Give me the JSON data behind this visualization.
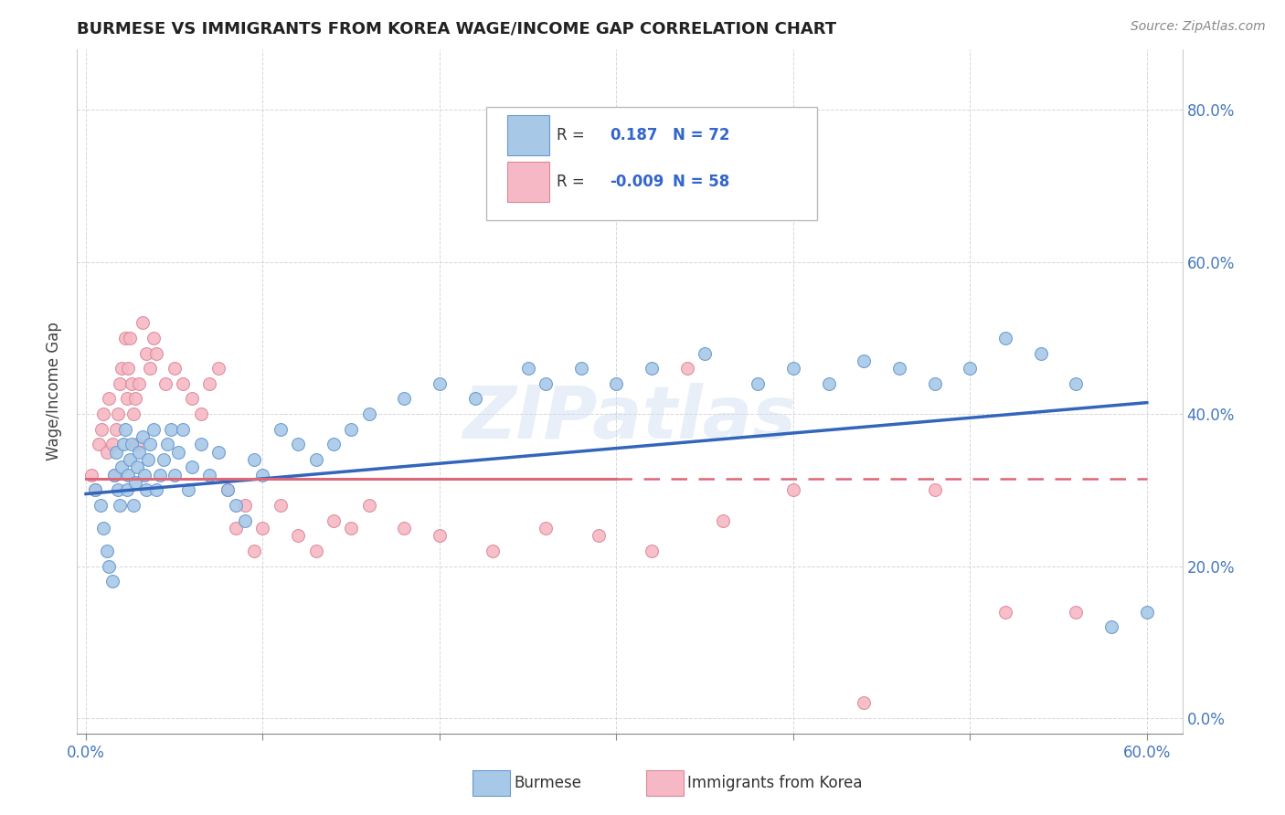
{
  "title": "BURMESE VS IMMIGRANTS FROM KOREA WAGE/INCOME GAP CORRELATION CHART",
  "source_text": "Source: ZipAtlas.com",
  "ylabel": "Wage/Income Gap",
  "xlabel_burmese": "Burmese",
  "xlabel_korea": "Immigrants from Korea",
  "xlim": [
    -0.005,
    0.62
  ],
  "ylim": [
    -0.02,
    0.88
  ],
  "ytick_vals": [
    0.0,
    0.2,
    0.4,
    0.6,
    0.8
  ],
  "xtick_vals": [
    0.0,
    0.1,
    0.2,
    0.3,
    0.4,
    0.5,
    0.6
  ],
  "blue_R": 0.187,
  "blue_N": 72,
  "pink_R": -0.009,
  "pink_N": 58,
  "blue_color": "#a8c8e8",
  "pink_color": "#f5b8c4",
  "blue_edge_color": "#6699cc",
  "pink_edge_color": "#dd8899",
  "blue_line_color": "#3366bb",
  "pink_line_color": "#dd6677",
  "watermark": "ZIPatlas",
  "bg_color": "#ffffff",
  "grid_color": "#cccccc",
  "tick_color": "#4477bb",
  "title_color": "#222222",
  "source_color": "#888888",
  "ylabel_color": "#444444",
  "legend_label_color": "#333333",
  "legend_value_color": "#3366cc",
  "blue_scatter_x": [
    0.005,
    0.008,
    0.01,
    0.012,
    0.013,
    0.015,
    0.016,
    0.017,
    0.018,
    0.019,
    0.02,
    0.021,
    0.022,
    0.023,
    0.024,
    0.025,
    0.026,
    0.027,
    0.028,
    0.029,
    0.03,
    0.032,
    0.033,
    0.034,
    0.035,
    0.036,
    0.038,
    0.04,
    0.042,
    0.044,
    0.046,
    0.048,
    0.05,
    0.052,
    0.055,
    0.058,
    0.06,
    0.065,
    0.07,
    0.075,
    0.08,
    0.085,
    0.09,
    0.095,
    0.1,
    0.11,
    0.12,
    0.13,
    0.14,
    0.15,
    0.16,
    0.18,
    0.2,
    0.22,
    0.25,
    0.28,
    0.3,
    0.32,
    0.35,
    0.38,
    0.4,
    0.42,
    0.44,
    0.46,
    0.48,
    0.5,
    0.52,
    0.54,
    0.56,
    0.58,
    0.6,
    0.26
  ],
  "blue_scatter_y": [
    0.3,
    0.28,
    0.25,
    0.22,
    0.2,
    0.18,
    0.32,
    0.35,
    0.3,
    0.28,
    0.33,
    0.36,
    0.38,
    0.3,
    0.32,
    0.34,
    0.36,
    0.28,
    0.31,
    0.33,
    0.35,
    0.37,
    0.32,
    0.3,
    0.34,
    0.36,
    0.38,
    0.3,
    0.32,
    0.34,
    0.36,
    0.38,
    0.32,
    0.35,
    0.38,
    0.3,
    0.33,
    0.36,
    0.32,
    0.35,
    0.3,
    0.28,
    0.26,
    0.34,
    0.32,
    0.38,
    0.36,
    0.34,
    0.36,
    0.38,
    0.4,
    0.42,
    0.44,
    0.42,
    0.46,
    0.46,
    0.44,
    0.46,
    0.48,
    0.44,
    0.46,
    0.44,
    0.47,
    0.46,
    0.44,
    0.46,
    0.5,
    0.48,
    0.44,
    0.12,
    0.14,
    0.44
  ],
  "pink_scatter_x": [
    0.003,
    0.005,
    0.007,
    0.009,
    0.01,
    0.012,
    0.013,
    0.015,
    0.016,
    0.017,
    0.018,
    0.019,
    0.02,
    0.022,
    0.023,
    0.024,
    0.025,
    0.026,
    0.027,
    0.028,
    0.029,
    0.03,
    0.032,
    0.034,
    0.036,
    0.038,
    0.04,
    0.045,
    0.05,
    0.055,
    0.06,
    0.065,
    0.07,
    0.075,
    0.08,
    0.085,
    0.09,
    0.095,
    0.1,
    0.11,
    0.12,
    0.13,
    0.14,
    0.15,
    0.16,
    0.18,
    0.2,
    0.23,
    0.26,
    0.29,
    0.32,
    0.36,
    0.4,
    0.44,
    0.48,
    0.52,
    0.56,
    0.34
  ],
  "pink_scatter_y": [
    0.32,
    0.3,
    0.36,
    0.38,
    0.4,
    0.35,
    0.42,
    0.36,
    0.32,
    0.38,
    0.4,
    0.44,
    0.46,
    0.5,
    0.42,
    0.46,
    0.5,
    0.44,
    0.4,
    0.42,
    0.36,
    0.44,
    0.52,
    0.48,
    0.46,
    0.5,
    0.48,
    0.44,
    0.46,
    0.44,
    0.42,
    0.4,
    0.44,
    0.46,
    0.3,
    0.25,
    0.28,
    0.22,
    0.25,
    0.28,
    0.24,
    0.22,
    0.26,
    0.25,
    0.28,
    0.25,
    0.24,
    0.22,
    0.25,
    0.24,
    0.22,
    0.26,
    0.3,
    0.02,
    0.3,
    0.14,
    0.14,
    0.46
  ],
  "pink_line_solid_end": 0.3,
  "blue_line_start_y": 0.295,
  "blue_line_end_y": 0.415,
  "pink_line_y": 0.315
}
